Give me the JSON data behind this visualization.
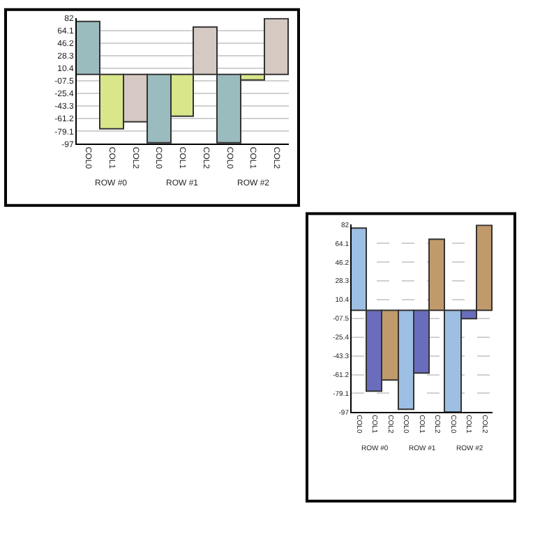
{
  "chart_data": [
    {
      "type": "bar",
      "categories": [
        "COL0",
        "COL1",
        "COL2",
        "COL0",
        "COL1",
        "COL2",
        "COL0",
        "COL1",
        "COL2"
      ],
      "ylim": [
        -97,
        82
      ],
      "yticks": [
        82,
        64.1,
        46.2,
        28.3,
        10.4,
        {
          "value": -7.5,
          "label": "-07.5"
        },
        -25.4,
        -43.3,
        -61.2,
        -79.1,
        -97
      ],
      "grid": "y",
      "values": [
        77,
        -77,
        -67,
        -96,
        -59,
        68,
        -97,
        -8,
        81
      ],
      "colors": [
        "#9bbcbf",
        "#d9e68a",
        "#d6c8c2",
        "#9bbcbf",
        "#d9e68a",
        "#d6c8c2",
        "#9bbcbf",
        "#d9e68a",
        "#d6c8c2"
      ],
      "annotations": [
        "ROW #0",
        "ROW #1",
        "ROW #2"
      ]
    },
    {
      "type": "bar",
      "categories": [
        "COL0",
        "COL1",
        "COL2",
        "COL0",
        "COL1",
        "COL2",
        "COL0",
        "COL1",
        "COL2"
      ],
      "ylim": [
        -97,
        82
      ],
      "yticks": [
        82,
        64.1,
        46.2,
        28.3,
        10.4,
        {
          "value": -7.5,
          "label": "-07.5"
        },
        -25.4,
        -43.3,
        -61.2,
        -79.1,
        -97
      ],
      "grid": "y",
      "line_style": "dashed",
      "values": [
        78,
        -77,
        -67,
        -95,
        -60,
        68,
        -97,
        -8,
        81
      ],
      "colors": [
        "#9dbfe3",
        "#6a6dbd",
        "#c19a6b",
        "#9dbfe3",
        "#6a6dbd",
        "#c19a6b",
        "#9dbfe3",
        "#6a6dbd",
        "#c19a6b"
      ],
      "annotations": [
        "ROW #0",
        "ROW #1",
        "ROW #2"
      ]
    }
  ]
}
